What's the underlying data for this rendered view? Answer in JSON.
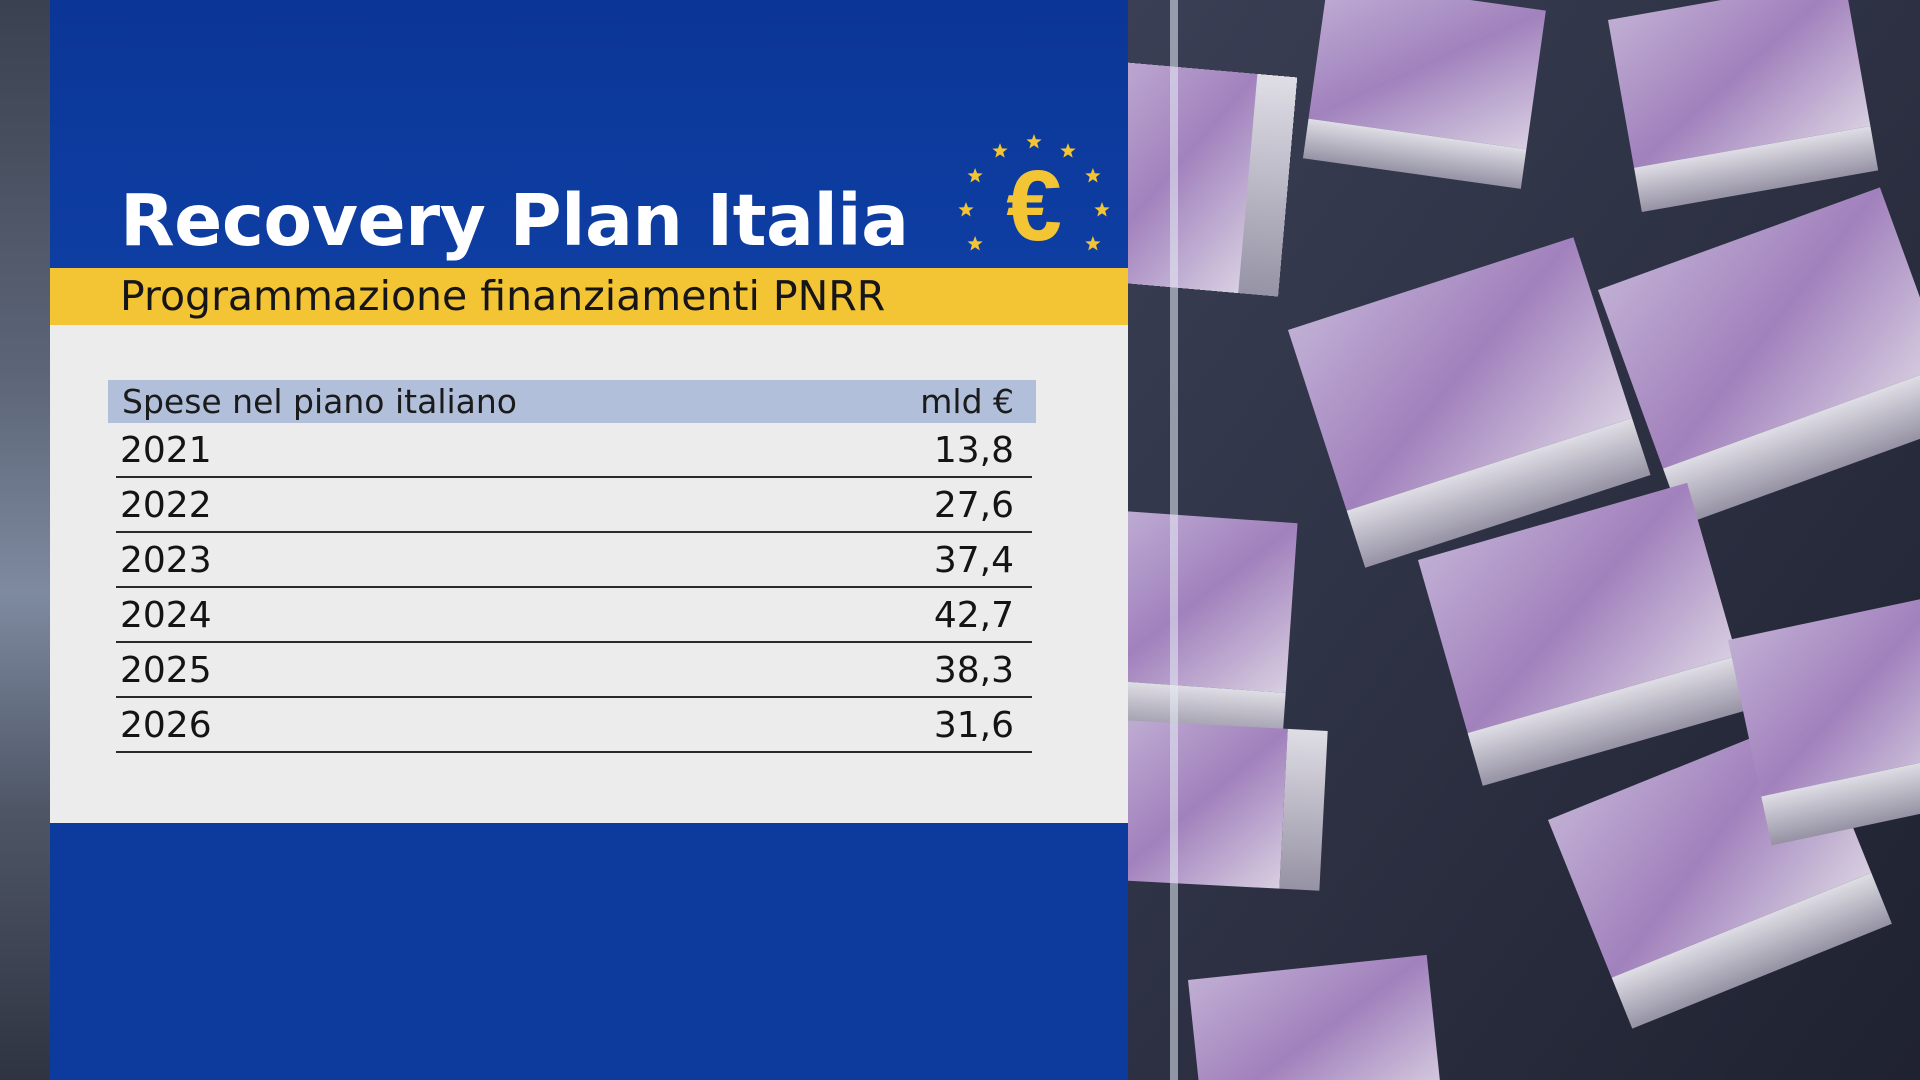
{
  "header": {
    "title": "Recovery Plan Italia",
    "subtitle": "Programmazione finanziamenti PNRR"
  },
  "table": {
    "column_label": "Spese nel piano italiano",
    "unit_label": "mld €",
    "rows": [
      {
        "year": "2021",
        "value": "13,8"
      },
      {
        "year": "2022",
        "value": "27,6"
      },
      {
        "year": "2023",
        "value": "37,4"
      },
      {
        "year": "2024",
        "value": "42,7"
      },
      {
        "year": "2025",
        "value": "38,3"
      },
      {
        "year": "2026",
        "value": "31,6"
      }
    ]
  },
  "logo": {
    "icon": "euro-stars-icon",
    "glyph": "€"
  },
  "colors": {
    "panel_blue": "#0d3a9a",
    "accent_yellow": "#f3c433",
    "table_header": "#b1bfdb",
    "table_bg": "#ececec",
    "banknote_purple": "#9a6fb4"
  }
}
